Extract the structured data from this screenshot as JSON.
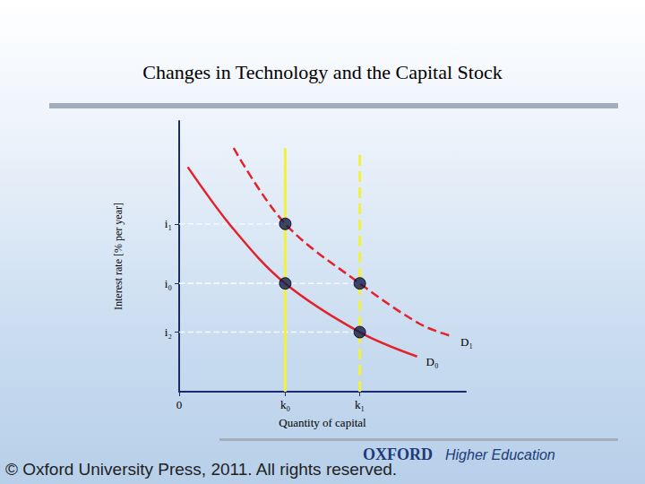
{
  "chart_data": {
    "type": "line",
    "title": "Changes in Technology and the Capital Stock",
    "xlabel": "Quantity of capital",
    "ylabel": "Interest rate [% per year]",
    "xlim": [
      0,
      10
    ],
    "ylim": [
      0,
      10
    ],
    "xticks": [
      0,
      {
        "value": 3.7,
        "label": "k₀"
      },
      {
        "value": 6.3,
        "label": "k₁"
      }
    ],
    "yticks": [
      {
        "value": 2.2,
        "label": "i₂"
      },
      {
        "value": 4.0,
        "label": "i₀"
      },
      {
        "value": 6.2,
        "label": "i₁"
      }
    ],
    "grid": false,
    "series": [
      {
        "name": "D₀",
        "color": "#e3222b",
        "line_style": "solid",
        "x": [
          0.3,
          1.9,
          3.7,
          6.3,
          8.3
        ],
        "values": [
          8.3,
          6.0,
          4.0,
          2.2,
          1.3
        ]
      },
      {
        "name": "D₁",
        "color": "#e3222b",
        "line_style": "dashed",
        "x": [
          1.9,
          3.7,
          6.3,
          8.4,
          9.5
        ],
        "values": [
          9.0,
          6.2,
          4.0,
          2.5,
          2.05
        ]
      }
    ],
    "capital_stock": [
      {
        "x": 3.7,
        "values": [
          0,
          9.0
        ],
        "color": "#f2f23a",
        "line_style": "solid"
      },
      {
        "x": 6.3,
        "values": [
          0,
          8.8
        ],
        "color": "#f2f23a",
        "line_style": "dashed"
      }
    ],
    "points": {
      "x": [
        3.7,
        3.7,
        6.3,
        6.3
      ],
      "y": [
        6.2,
        4.0,
        4.0,
        2.2
      ],
      "color": "#101c4f",
      "marker": "circle"
    },
    "guides": {
      "color": "#f7fafd",
      "line_style": "dashed"
    },
    "annotations": [
      {
        "text": "© Oxford University Press, 2011. All rights reserved."
      },
      {
        "text": "OXFORD"
      },
      {
        "text": "Higher Education"
      }
    ]
  }
}
